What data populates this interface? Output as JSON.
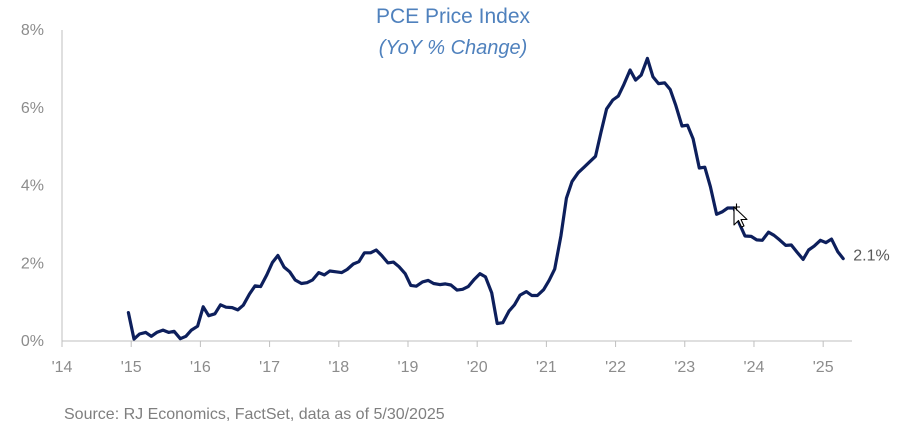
{
  "colors": {
    "title": "#4f81bd",
    "series": "#0d1f5c",
    "axis": "#bfbfbf",
    "tick_text": "#8c8c8c",
    "source_text": "#7f7f7f",
    "end_label": "#595959"
  },
  "cursor": {
    "icon": "move-cursor-icon"
  },
  "chart_data": {
    "type": "line",
    "title": "PCE Price Index",
    "subtitle": "(YoY % Change)",
    "source": "Source: RJ Economics, FactSet, data as of 5/30/2025",
    "end_label": "2.1%",
    "xlim": [
      2014.0,
      2025.4167
    ],
    "ylim": [
      0,
      8
    ],
    "grid": false,
    "x_ticks": [
      {
        "value": 2014,
        "label": "'14"
      },
      {
        "value": 2015,
        "label": "'15"
      },
      {
        "value": 2016,
        "label": "'16"
      },
      {
        "value": 2017,
        "label": "'17"
      },
      {
        "value": 2018,
        "label": "'18"
      },
      {
        "value": 2019,
        "label": "'19"
      },
      {
        "value": 2020,
        "label": "'20"
      },
      {
        "value": 2021,
        "label": "'21"
      },
      {
        "value": 2022,
        "label": "'22"
      },
      {
        "value": 2023,
        "label": "'23"
      },
      {
        "value": 2024,
        "label": "'24"
      },
      {
        "value": 2025,
        "label": "'25"
      }
    ],
    "y_ticks": [
      {
        "value": 0,
        "label": "0%"
      },
      {
        "value": 2,
        "label": "2%"
      },
      {
        "value": 4,
        "label": "4%"
      },
      {
        "value": 6,
        "label": "6%"
      },
      {
        "value": 8,
        "label": "8%"
      }
    ],
    "series": [
      {
        "x": [
          2014.96,
          2015.04,
          2015.12,
          2015.21,
          2015.29,
          2015.37,
          2015.46,
          2015.54,
          2015.62,
          2015.71,
          2015.79,
          2015.87,
          2015.96,
          2016.04,
          2016.12,
          2016.21,
          2016.29,
          2016.37,
          2016.46,
          2016.54,
          2016.62,
          2016.71,
          2016.79,
          2016.87,
          2016.96,
          2017.04,
          2017.12,
          2017.21,
          2017.29,
          2017.37,
          2017.46,
          2017.54,
          2017.62,
          2017.71,
          2017.79,
          2017.87,
          2017.96,
          2018.04,
          2018.12,
          2018.21,
          2018.29,
          2018.37,
          2018.46,
          2018.54,
          2018.62,
          2018.71,
          2018.79,
          2018.87,
          2018.96,
          2019.04,
          2019.12,
          2019.21,
          2019.29,
          2019.37,
          2019.46,
          2019.54,
          2019.62,
          2019.71,
          2019.79,
          2019.87,
          2019.96,
          2020.04,
          2020.12,
          2020.21,
          2020.29,
          2020.37,
          2020.46,
          2020.54,
          2020.62,
          2020.71,
          2020.79,
          2020.87,
          2020.96,
          2021.04,
          2021.12,
          2021.21,
          2021.29,
          2021.37,
          2021.46,
          2021.54,
          2021.62,
          2021.71,
          2021.79,
          2021.87,
          2021.96,
          2022.04,
          2022.12,
          2022.21,
          2022.29,
          2022.37,
          2022.46,
          2022.54,
          2022.62,
          2022.71,
          2022.79,
          2022.87,
          2022.96,
          2023.04,
          2023.12,
          2023.21,
          2023.29,
          2023.37,
          2023.46,
          2023.54,
          2023.62,
          2023.71,
          2023.79,
          2023.87,
          2023.96,
          2024.04,
          2024.12,
          2024.21,
          2024.29,
          2024.37,
          2024.46,
          2024.54,
          2024.62,
          2024.71,
          2024.79,
          2024.87,
          2024.96,
          2025.04,
          2025.12,
          2025.21,
          2025.29
        ],
        "y": [
          0.73,
          0.05,
          0.18,
          0.22,
          0.12,
          0.22,
          0.28,
          0.22,
          0.25,
          0.06,
          0.12,
          0.28,
          0.38,
          0.88,
          0.65,
          0.7,
          0.93,
          0.87,
          0.86,
          0.8,
          0.92,
          1.21,
          1.42,
          1.4,
          1.7,
          2.02,
          2.2,
          1.9,
          1.78,
          1.57,
          1.48,
          1.5,
          1.57,
          1.76,
          1.7,
          1.8,
          1.78,
          1.76,
          1.84,
          1.98,
          2.04,
          2.27,
          2.27,
          2.34,
          2.2,
          2.01,
          2.03,
          1.91,
          1.73,
          1.43,
          1.41,
          1.52,
          1.56,
          1.48,
          1.45,
          1.47,
          1.44,
          1.31,
          1.33,
          1.4,
          1.59,
          1.73,
          1.65,
          1.24,
          0.45,
          0.47,
          0.77,
          0.93,
          1.18,
          1.27,
          1.17,
          1.17,
          1.32,
          1.56,
          1.85,
          2.7,
          3.67,
          4.1,
          4.33,
          4.46,
          4.6,
          4.75,
          5.37,
          5.97,
          6.2,
          6.3,
          6.6,
          6.97,
          6.71,
          6.84,
          7.27,
          6.8,
          6.62,
          6.64,
          6.47,
          6.06,
          5.53,
          5.55,
          5.2,
          4.45,
          4.47,
          3.97,
          3.26,
          3.32,
          3.42,
          3.42,
          3.02,
          2.7,
          2.69,
          2.6,
          2.59,
          2.8,
          2.72,
          2.6,
          2.46,
          2.47,
          2.29,
          2.1,
          2.34,
          2.44,
          2.59,
          2.53,
          2.62,
          2.3,
          2.12
        ]
      }
    ]
  }
}
